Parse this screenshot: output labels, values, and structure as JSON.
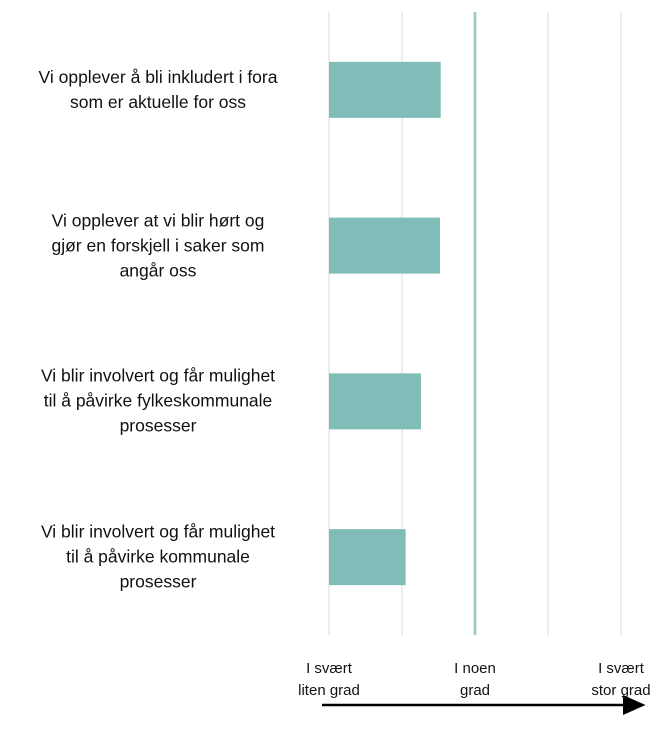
{
  "chart_data": {
    "type": "bar",
    "orientation": "horizontal",
    "categories": [
      "Vi opplever å bli inkludert i fora\nsom er aktuelle for oss",
      "Vi opplever at vi blir hørt og\ngjør en forskjell i saker som\nangår oss",
      "Vi blir involvert og får mulighet\ntil å påvirke fylkeskommunale\nprosesser",
      "Vi blir involvert og får mulighet\ntil å påvirke kommunale\nprosesser"
    ],
    "values": [
      2.53,
      2.52,
      2.26,
      2.05
    ],
    "color": "#80bdb8",
    "xlim": [
      1,
      5
    ],
    "xticks": [
      {
        "value": 1,
        "label": "I svært\nliten grad"
      },
      {
        "value": 2,
        "label": null
      },
      {
        "value": 3,
        "label": "I noen\ngrad"
      },
      {
        "value": 4,
        "label": null
      },
      {
        "value": 5,
        "label": "I svært\nstor grad"
      }
    ],
    "grid": true,
    "reference_x": 3
  }
}
